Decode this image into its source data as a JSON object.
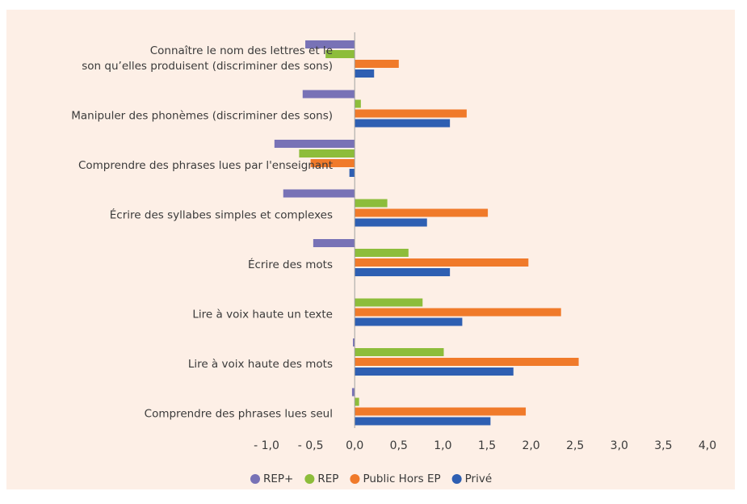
{
  "chart_data": {
    "type": "bar",
    "orientation": "horizontal",
    "categories": [
      "Connaître le nom des lettres et le son qu’elles produisent (discriminer des sons)",
      "Manipuler des phonèmes (discriminer des sons)",
      "Comprendre des phrases lues par l'enseignant",
      "Écrire des syllabes simples et complexes",
      "Écrire des mots",
      "Lire à voix haute un texte",
      "Lire à voix haute des mots",
      "Comprendre des phrases lues seul"
    ],
    "series": [
      {
        "name": "REP+",
        "color": "#7872b6",
        "values": [
          -0.56,
          -0.59,
          -0.91,
          -0.81,
          -0.47,
          0.0,
          -0.02,
          -0.03
        ]
      },
      {
        "name": "REP",
        "color": "#8dbd3b",
        "values": [
          -0.33,
          0.07,
          -0.63,
          0.37,
          0.61,
          0.77,
          1.01,
          0.05
        ]
      },
      {
        "name": "Public Hors EP",
        "color": "#f07a2a",
        "values": [
          0.5,
          1.27,
          -0.5,
          1.51,
          1.97,
          2.34,
          2.54,
          1.94
        ]
      },
      {
        "name": "Privé",
        "color": "#2e5fb2",
        "values": [
          0.22,
          1.08,
          -0.06,
          0.82,
          1.08,
          1.22,
          1.8,
          1.54
        ]
      }
    ],
    "xlim": [
      -1.0,
      4.0
    ],
    "xticks": [
      {
        "value": -1.0,
        "label": "- 1,0"
      },
      {
        "value": -0.5,
        "label": "- 0,5"
      },
      {
        "value": 0.0,
        "label": "0,0"
      },
      {
        "value": 0.5,
        "label": "0,5"
      },
      {
        "value": 1.0,
        "label": "1,0"
      },
      {
        "value": 1.5,
        "label": "1,5"
      },
      {
        "value": 2.0,
        "label": "2,0"
      },
      {
        "value": 2.5,
        "label": "2,5"
      },
      {
        "value": 3.0,
        "label": "3,0"
      },
      {
        "value": 3.5,
        "label": "3,5"
      },
      {
        "value": 4.0,
        "label": "4,0"
      }
    ],
    "grid": false,
    "legend": "bottom"
  }
}
